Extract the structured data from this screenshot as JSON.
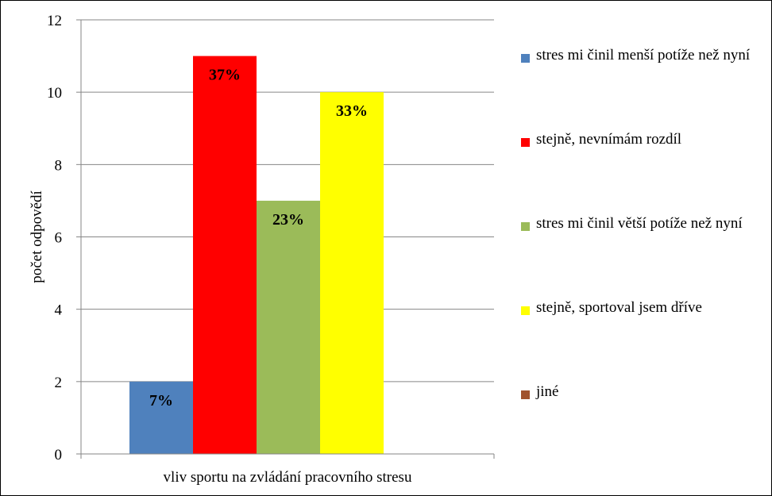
{
  "chart_data": {
    "type": "bar",
    "title": "",
    "xlabel": "vliv sportu na zvládání pracovního stresu",
    "ylabel": "počet odpovědí",
    "ylim": [
      0,
      12
    ],
    "yticks": [
      0,
      2,
      4,
      6,
      8,
      10,
      12
    ],
    "categories": [
      "vliv sportu na zvládání pracovního stresu"
    ],
    "series": [
      {
        "name": "stres mi činil menší potíže než nyní",
        "values": [
          2
        ],
        "label": "7%",
        "color": "#4F81BD"
      },
      {
        "name": "stejně, nevnímám rozdíl",
        "values": [
          11
        ],
        "label": "37%",
        "color": "#FF0000"
      },
      {
        "name": "stres mi činil větší potíže než nyní",
        "values": [
          7
        ],
        "label": "23%",
        "color": "#9BBB59"
      },
      {
        "name": "stejně, sportoval jsem dříve",
        "values": [
          10
        ],
        "label": "33%",
        "color": "#FFFF00"
      },
      {
        "name": "jiné",
        "values": [
          0
        ],
        "label": "",
        "color": "#A0522D"
      }
    ],
    "grid": true,
    "legend": "right"
  }
}
